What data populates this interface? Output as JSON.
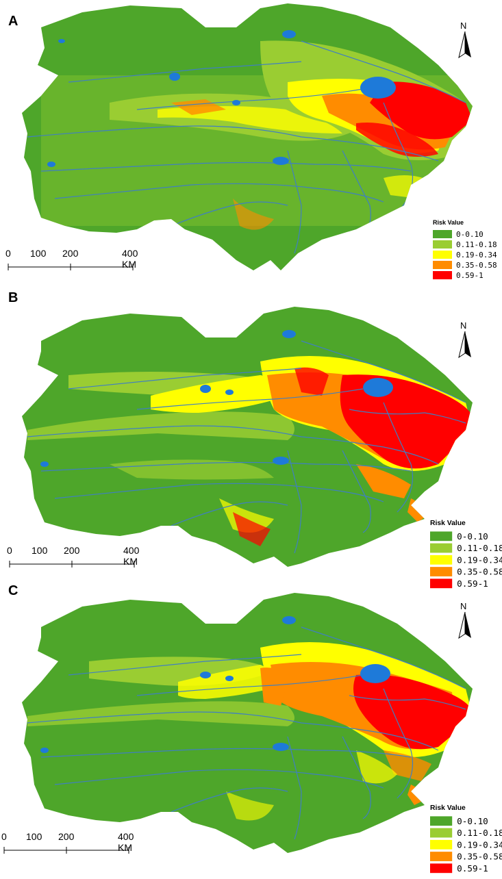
{
  "legend": {
    "title": "Risk Value",
    "classes": [
      {
        "label": "0-0.10",
        "color": "#4ea62a"
      },
      {
        "label": "0.11-0.18",
        "color": "#9acd32"
      },
      {
        "label": "0.19-0.34",
        "color": "#ffff00"
      },
      {
        "label": "0.35-0.58",
        "color": "#ff8c00"
      },
      {
        "label": "0.59-1",
        "color": "#ff0000"
      }
    ]
  },
  "north_label": "N",
  "scale": {
    "ticks": [
      "0",
      "100",
      "200"
    ],
    "end_label": "400 KM"
  },
  "panels": [
    {
      "letter": "A"
    },
    {
      "letter": "B"
    },
    {
      "letter": "C"
    }
  ],
  "colors": {
    "river": "#3f7fc2",
    "lake": "#1e7ad9"
  }
}
